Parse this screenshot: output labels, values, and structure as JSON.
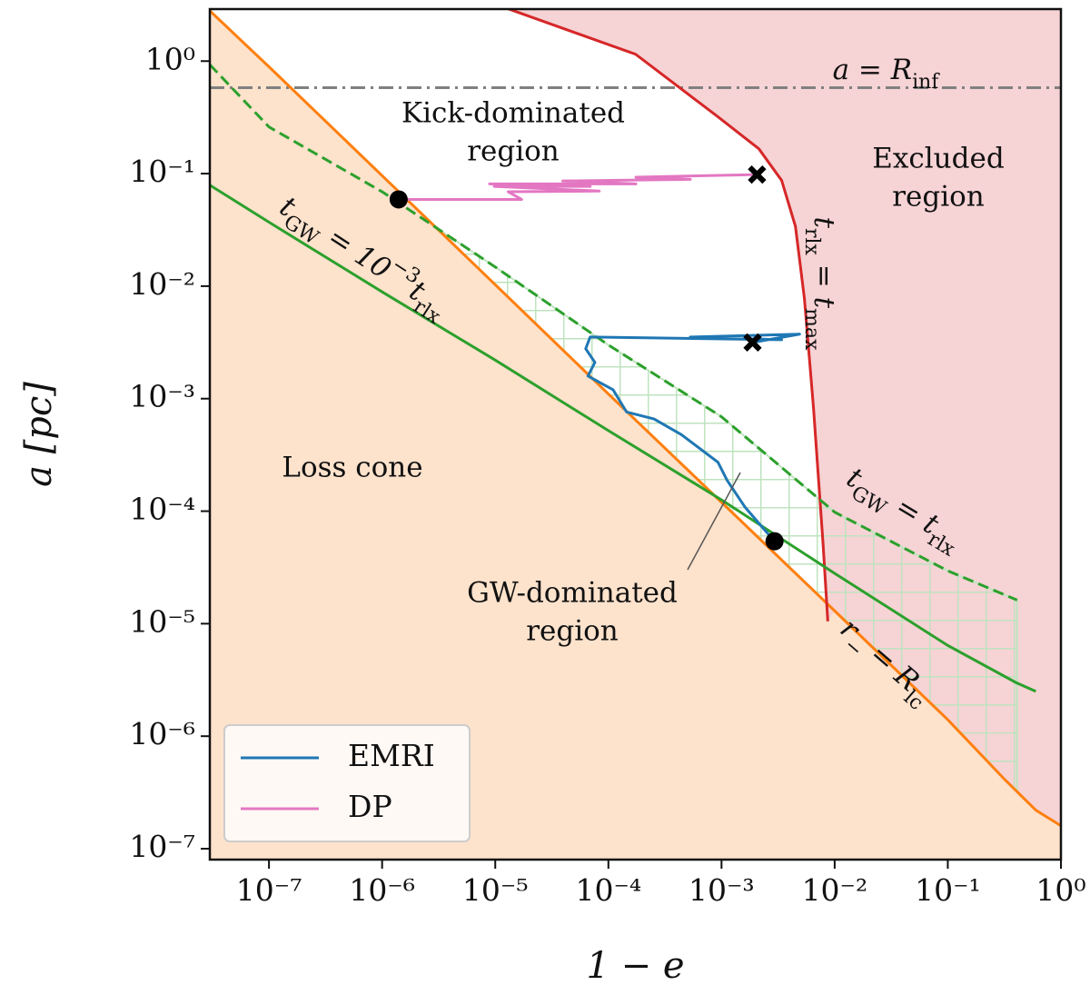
{
  "chart_data": {
    "type": "line",
    "xscale": "log",
    "yscale": "log",
    "xlabel": "1 − e",
    "ylabel": "a [pc]",
    "xlim": [
      3e-08,
      1.0
    ],
    "ylim": [
      8e-08,
      2.9
    ],
    "xticks": [
      {
        "value": 1e-07,
        "label": "10⁻⁷"
      },
      {
        "value": 1e-06,
        "label": "10⁻⁶"
      },
      {
        "value": 1e-05,
        "label": "10⁻⁵"
      },
      {
        "value": 0.0001,
        "label": "10⁻⁴"
      },
      {
        "value": 0.001,
        "label": "10⁻³"
      },
      {
        "value": 0.01,
        "label": "10⁻²"
      },
      {
        "value": 0.1,
        "label": "10⁻¹"
      },
      {
        "value": 1,
        "label": "10⁰"
      }
    ],
    "yticks": [
      {
        "value": 1e-07,
        "label": "10⁻⁷"
      },
      {
        "value": 1e-06,
        "label": "10⁻⁶"
      },
      {
        "value": 1e-05,
        "label": "10⁻⁵"
      },
      {
        "value": 0.0001,
        "label": "10⁻⁴"
      },
      {
        "value": 0.001,
        "label": "10⁻³"
      },
      {
        "value": 0.01,
        "label": "10⁻²"
      },
      {
        "value": 0.1,
        "label": "10⁻¹"
      },
      {
        "value": 1,
        "label": "10⁰"
      }
    ],
    "legend": "lower left",
    "hline": {
      "value": 0.58,
      "color": "#808080",
      "style": "dashdot"
    },
    "curves": [
      {
        "color": "#ff7f0e",
        "fill": "#fde2cc",
        "x": [
          3e-08,
          1e-07,
          1e-06,
          1e-05,
          0.0001,
          0.001,
          0.01,
          0.1,
          0.32,
          0.6,
          1.0
        ],
        "values": [
          2.8,
          0.89,
          0.096,
          0.0103,
          0.0011,
          0.00012,
          1.3e-05,
          1.4e-06,
          4.1e-07,
          2.2e-07,
          1.6e-07
        ]
      },
      {
        "color": "#d62728",
        "fill": "#f6d3d5",
        "x": [
          1.26e-05,
          0.000174,
          0.00093,
          0.00214,
          0.0034,
          0.0045,
          0.0054,
          0.0065,
          0.0079,
          0.0087
        ],
        "values": [
          2.95,
          1.15,
          0.32,
          0.166,
          0.087,
          0.034,
          0.0078,
          0.00083,
          5.1e-05,
          1.05e-05
        ]
      },
      {
        "color": "#2ca02c",
        "style": "dashed",
        "hatch": "#bfe3bf",
        "x": [
          3e-08,
          1e-07,
          1e-06,
          1e-05,
          0.0001,
          0.001,
          0.01,
          0.1,
          0.41
        ],
        "values": [
          0.93,
          0.26,
          0.069,
          0.0148,
          0.003,
          0.00069,
          9.8e-05,
          2.95e-05,
          1.62e-05
        ]
      },
      {
        "color": "#2ca02c",
        "x": [
          3e-08,
          1e-07,
          1e-06,
          1e-05,
          0.0001,
          0.001,
          0.01,
          0.1,
          0.4,
          0.6
        ],
        "values": [
          0.079,
          0.037,
          0.0089,
          0.0022,
          0.00052,
          0.000126,
          2.8e-05,
          6.4e-06,
          3e-06,
          2.5e-06
        ]
      }
    ],
    "series": [
      {
        "name": "EMRI",
        "color": "#1f77b4",
        "x": [
          0.00188,
          0.0049,
          0.00053,
          0.0034,
          6.9e-05,
          6.3e-05,
          7.6e-05,
          6.6e-05,
          0.00011,
          0.000145,
          0.000253,
          0.00044,
          0.00093,
          0.00112,
          0.00162,
          0.00235,
          0.00294
        ],
        "values": [
          0.00316,
          0.00374,
          0.00353,
          0.00334,
          0.00353,
          0.00278,
          0.0021,
          0.00159,
          0.0012,
          0.00076,
          0.00066,
          0.00048,
          0.000272,
          0.000188,
          0.000108,
          7e-05,
          5.4e-05
        ]
      },
      {
        "name": "DP",
        "color": "#e377c2",
        "x": [
          0.00206,
          0.000175,
          0.00053,
          3.95e-05,
          0.000175,
          8.9e-06,
          6.9e-05,
          9.8e-06,
          8.3e-05,
          1.3e-05,
          1.71e-05,
          1.4e-06
        ],
        "values": [
          0.098,
          0.093,
          0.089,
          0.086,
          0.081,
          0.081,
          0.077,
          0.077,
          0.07,
          0.069,
          0.059,
          0.059
        ]
      }
    ],
    "first_marker": "x",
    "last_marker": "o",
    "annotations": [
      {
        "parts": [
          {
            "text": "a = R"
          },
          {
            "text": "inf",
            "shift": "sub"
          }
        ]
      },
      {
        "lines": [
          "Kick-dominated",
          "region"
        ]
      },
      {
        "lines": [
          "Excluded",
          "region"
        ]
      },
      {
        "lines": [
          "Loss cone"
        ]
      },
      {
        "lines": [
          "GW-dominated",
          "region"
        ]
      },
      {
        "parts": [
          {
            "text": "t"
          },
          {
            "text": "GW",
            "shift": "sub"
          },
          {
            "text": " = 10"
          },
          {
            "text": "−3",
            "shift": "super"
          },
          {
            "text": "t"
          },
          {
            "text": "rlx",
            "shift": "sub"
          }
        ]
      },
      {
        "parts": [
          {
            "text": "t"
          },
          {
            "text": "rlx",
            "shift": "sub"
          },
          {
            "text": " = t"
          },
          {
            "text": "max",
            "shift": "sub"
          }
        ]
      },
      {
        "parts": [
          {
            "text": "t"
          },
          {
            "text": "GW",
            "shift": "sub"
          },
          {
            "text": " = t"
          },
          {
            "text": "rlx",
            "shift": "sub"
          }
        ]
      },
      {
        "parts": [
          {
            "text": "r"
          },
          {
            "text": "−",
            "shift": "sub"
          },
          {
            "text": " = R"
          },
          {
            "text": "lc",
            "shift": "sub"
          }
        ]
      }
    ]
  }
}
